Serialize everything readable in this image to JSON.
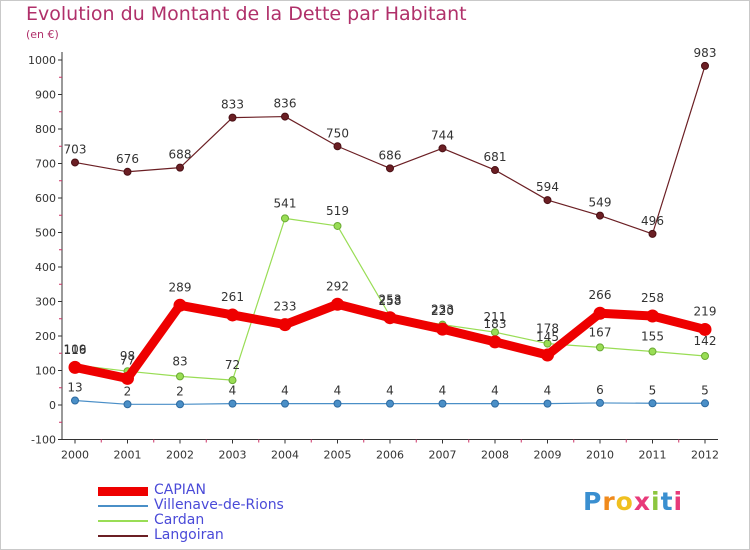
{
  "title": "Evolution du Montant de la Dette par Habitant",
  "subtitle": "(en €)",
  "logo_text": "Proxiti",
  "chart_data": {
    "type": "line",
    "x": [
      "2000",
      "2001",
      "2002",
      "2003",
      "2004",
      "2005",
      "2006",
      "2007",
      "2008",
      "2009",
      "2010",
      "2011",
      "2012"
    ],
    "ylim": [
      -100,
      1000
    ],
    "yticks": [
      -100,
      0,
      100,
      200,
      300,
      400,
      500,
      600,
      700,
      800,
      900,
      1000
    ],
    "grid": false,
    "legend_position": "bottom-left",
    "series": [
      {
        "name": "CAPIAN",
        "color": "#ee0000",
        "values": [
          109,
          77,
          289,
          261,
          233,
          292,
          253,
          220,
          183,
          145,
          266,
          258,
          219
        ]
      },
      {
        "name": "Villenave-de-Rions",
        "color": "#4a8fc7",
        "values": [
          13,
          2,
          2,
          4,
          4,
          4,
          4,
          4,
          4,
          4,
          6,
          5,
          5
        ]
      },
      {
        "name": "Cardan",
        "color": "#99dd55",
        "values": [
          116,
          98,
          83,
          72,
          541,
          519,
          258,
          233,
          211,
          178,
          167,
          155,
          142
        ]
      },
      {
        "name": "Langoiran",
        "color": "#6b1f24",
        "values": [
          703,
          676,
          688,
          833,
          836,
          750,
          686,
          744,
          681,
          594,
          549,
          496,
          983
        ]
      }
    ]
  }
}
